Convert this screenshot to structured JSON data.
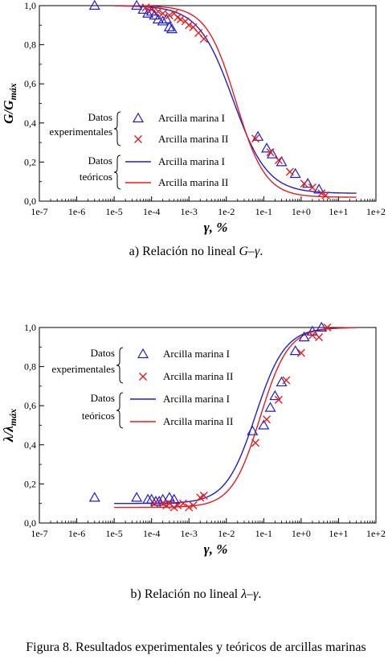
{
  "figure_caption": "Figura 8. Resultados experimentales y teóricos de arcillas marinas",
  "colors": {
    "clay1": "#1f1fd0",
    "clay2": "#e81c1c"
  },
  "chart_data": [
    {
      "id": "a",
      "type": "scatter",
      "caption_prefix": "a) Relación no lineal ",
      "caption_math": "G–γ",
      "caption_suffix": ".",
      "ylabel": "G/G",
      "ylabel_sub": "máx",
      "xlabel": "γ, %",
      "xscale": "log",
      "xlim": [
        1e-07,
        100
      ],
      "ylim": [
        0,
        1
      ],
      "x_ticks": [
        "1e-7",
        "1e-6",
        "1e-5",
        "1e-4",
        "1e-3",
        "1e-2",
        "1e-1",
        "1e+0",
        "1e+1",
        "1e+2"
      ],
      "y_ticks": [
        "0,0",
        "0,2",
        "0,4",
        "0,6",
        "0,8",
        "1,0"
      ],
      "legend": {
        "group_experimental": [
          "Datos",
          "experimentales"
        ],
        "group_theoretical": [
          "Datos",
          "teóricos"
        ],
        "entries": [
          "Arcilla marina I",
          "Arcilla marina II",
          "Arcilla marina I",
          "Arcilla marina II"
        ]
      },
      "series": [
        {
          "name": "Arcilla marina I",
          "kind": "experimental",
          "marker": "triangle",
          "points": [
            [
              3e-06,
              1.0
            ],
            [
              4e-05,
              1.0
            ],
            [
              6e-05,
              0.98
            ],
            [
              8e-05,
              0.96
            ],
            [
              0.0001,
              0.97
            ],
            [
              0.00012,
              0.95
            ],
            [
              0.00015,
              0.93
            ],
            [
              0.0002,
              0.92
            ],
            [
              0.00025,
              0.93
            ],
            [
              0.0003,
              0.89
            ],
            [
              0.00035,
              0.88
            ],
            [
              0.07,
              0.33
            ],
            [
              0.12,
              0.27
            ],
            [
              0.17,
              0.24
            ],
            [
              0.3,
              0.2
            ],
            [
              0.7,
              0.14
            ],
            [
              1.5,
              0.09
            ],
            [
              3,
              0.06
            ]
          ]
        },
        {
          "name": "Arcilla marina II",
          "kind": "experimental",
          "marker": "cross",
          "points": [
            [
              7e-05,
              0.99
            ],
            [
              0.0001,
              0.98
            ],
            [
              0.00015,
              0.97
            ],
            [
              0.0002,
              0.96
            ],
            [
              0.0003,
              0.95
            ],
            [
              0.0004,
              0.96
            ],
            [
              0.0005,
              0.94
            ],
            [
              0.0006,
              0.93
            ],
            [
              0.0008,
              0.92
            ],
            [
              0.001,
              0.9
            ],
            [
              0.0013,
              0.89
            ],
            [
              0.0018,
              0.86
            ],
            [
              0.0025,
              0.83
            ],
            [
              0.06,
              0.32
            ],
            [
              0.15,
              0.25
            ],
            [
              0.25,
              0.21
            ],
            [
              0.5,
              0.15
            ],
            [
              1.2,
              0.09
            ],
            [
              2,
              0.07
            ],
            [
              3.5,
              0.04
            ],
            [
              4.5,
              0.03
            ]
          ]
        },
        {
          "name": "Arcilla marina I",
          "kind": "theoretical",
          "curve": {
            "f": "G",
            "gr": 0.015,
            "a": 0.94,
            "min": 0.04,
            "x0": 1e-05,
            "x1": 30
          }
        },
        {
          "name": "Arcilla marina II",
          "kind": "theoretical",
          "curve": {
            "f": "G",
            "gr": 0.018,
            "a": 1.1,
            "min": 0.02,
            "x0": 1e-05,
            "x1": 30
          }
        }
      ]
    },
    {
      "id": "b",
      "type": "scatter",
      "caption_prefix": "b) Relación no lineal ",
      "caption_math": "λ–γ",
      "caption_suffix": ".",
      "ylabel": "λ/λ",
      "ylabel_sub": "máx",
      "xlabel": "γ, %",
      "xscale": "log",
      "xlim": [
        1e-07,
        100
      ],
      "ylim": [
        0,
        1
      ],
      "x_ticks": [
        "1e-7",
        "1e-6",
        "1e-5",
        "1e-4",
        "1e-3",
        "1e-2",
        "1e-1",
        "1e+0",
        "1e+1",
        "1e+2"
      ],
      "y_ticks": [
        "0,0",
        "0,2",
        "0,4",
        "0,6",
        "0,8",
        "1,0"
      ],
      "legend": {
        "group_experimental": [
          "Datos",
          "experimentales"
        ],
        "group_theoretical": [
          "Datos",
          "teóricos"
        ],
        "entries": [
          "Arcilla marina I",
          "Arcilla marina II",
          "Arcilla marina I",
          "Arcilla marina II"
        ]
      },
      "series": [
        {
          "name": "Arcilla marina I",
          "kind": "experimental",
          "marker": "triangle",
          "points": [
            [
              3e-06,
              0.13
            ],
            [
              4e-05,
              0.13
            ],
            [
              8e-05,
              0.12
            ],
            [
              0.0001,
              0.12
            ],
            [
              0.00013,
              0.11
            ],
            [
              0.00016,
              0.11
            ],
            [
              0.0002,
              0.12
            ],
            [
              0.0003,
              0.13
            ],
            [
              0.0004,
              0.12
            ],
            [
              0.05,
              0.47
            ],
            [
              0.1,
              0.5
            ],
            [
              0.15,
              0.59
            ],
            [
              0.2,
              0.65
            ],
            [
              0.3,
              0.72
            ],
            [
              0.7,
              0.88
            ],
            [
              1.2,
              0.95
            ],
            [
              2,
              0.98
            ],
            [
              3.5,
              1.0
            ]
          ]
        },
        {
          "name": "Arcilla marina II",
          "kind": "experimental",
          "marker": "cross",
          "points": [
            [
              0.00012,
              0.1
            ],
            [
              0.0002,
              0.1
            ],
            [
              0.00025,
              0.09
            ],
            [
              0.0003,
              0.1
            ],
            [
              0.0004,
              0.08
            ],
            [
              0.0005,
              0.09
            ],
            [
              0.0007,
              0.1
            ],
            [
              0.001,
              0.08
            ],
            [
              0.0013,
              0.09
            ],
            [
              0.002,
              0.13
            ],
            [
              0.0025,
              0.14
            ],
            [
              0.06,
              0.41
            ],
            [
              0.12,
              0.53
            ],
            [
              0.25,
              0.63
            ],
            [
              0.4,
              0.73
            ],
            [
              1,
              0.87
            ],
            [
              2,
              0.96
            ],
            [
              3,
              0.95
            ],
            [
              5,
              1.0
            ]
          ]
        },
        {
          "name": "Arcilla marina I",
          "kind": "theoretical",
          "curve": {
            "f": "L",
            "gr": 0.06,
            "a": 1.1,
            "min": 0.1,
            "x0": 1e-05,
            "x1": 30
          }
        },
        {
          "name": "Arcilla marina II",
          "kind": "theoretical",
          "curve": {
            "f": "L",
            "gr": 0.08,
            "a": 1.15,
            "min": 0.08,
            "x0": 1e-05,
            "x1": 30
          }
        }
      ]
    }
  ]
}
